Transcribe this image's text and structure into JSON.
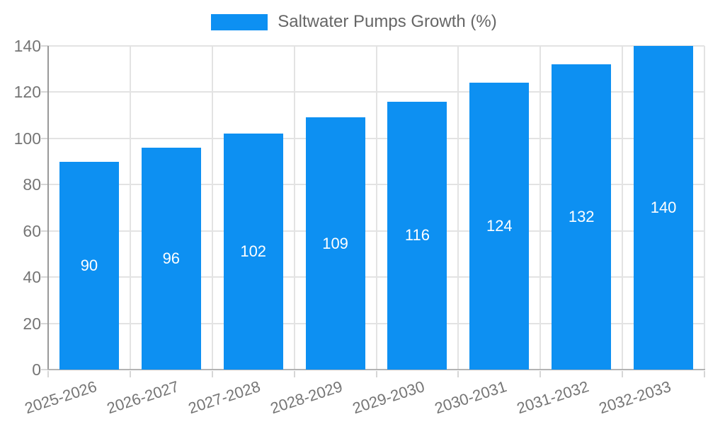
{
  "chart_data": {
    "type": "bar",
    "title": "Saltwater Pumps Growth (%)",
    "categories": [
      "2025-2026",
      "2026-2027",
      "2027-2028",
      "2028-2029",
      "2029-2030",
      "2030-2031",
      "2031-2032",
      "2032-2033"
    ],
    "values": [
      90,
      96,
      102,
      109,
      116,
      124,
      132,
      140
    ],
    "xlabel": "",
    "ylabel": "",
    "ylim": [
      0,
      140
    ],
    "yticks": [
      0,
      20,
      40,
      60,
      80,
      100,
      120,
      140
    ],
    "grid": true,
    "legend_position": "top-center",
    "bar_value_labels_inside": true,
    "colors": {
      "bar": "#0d90f2",
      "bar_label": "#ffffff",
      "axis_line_y": "#999999",
      "axis_line_x": "#b3b3b3",
      "gridline": "#e3e3e3",
      "tick_mark": "#d6d6d6",
      "tick_label": "#757575",
      "legend_text": "#666666",
      "background": "#ffffff"
    }
  }
}
